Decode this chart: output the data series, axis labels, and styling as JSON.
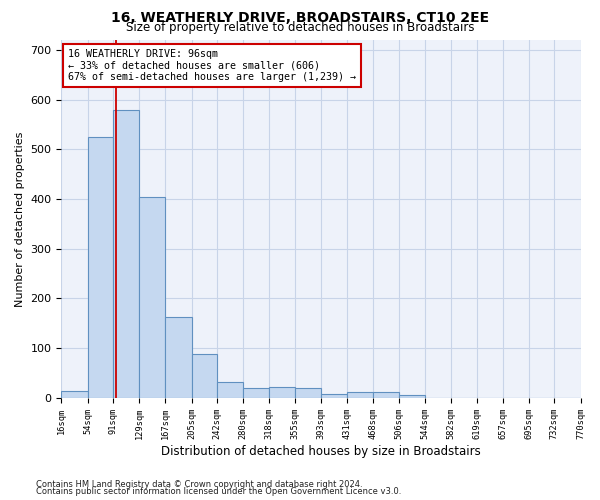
{
  "title1": "16, WEATHERLY DRIVE, BROADSTAIRS, CT10 2EE",
  "title2": "Size of property relative to detached houses in Broadstairs",
  "xlabel": "Distribution of detached houses by size in Broadstairs",
  "ylabel": "Number of detached properties",
  "bar_color": "#c5d8f0",
  "bar_edge_color": "#6090c0",
  "grid_color": "#c8d4e8",
  "bg_color": "#eef2fa",
  "annotation_text": "16 WEATHERLY DRIVE: 96sqm\n← 33% of detached houses are smaller (606)\n67% of semi-detached houses are larger (1,239) →",
  "redline_x": 96,
  "bin_edges": [
    16,
    54,
    91,
    129,
    167,
    205,
    242,
    280,
    318,
    355,
    393,
    431,
    468,
    506,
    544,
    582,
    619,
    657,
    695,
    732,
    770
  ],
  "bar_heights": [
    14,
    524,
    580,
    404,
    163,
    88,
    32,
    19,
    22,
    20,
    7,
    11,
    11,
    5,
    0,
    0,
    0,
    0,
    0,
    0
  ],
  "ylim": [
    0,
    720
  ],
  "yticks": [
    0,
    100,
    200,
    300,
    400,
    500,
    600,
    700
  ],
  "footnote1": "Contains HM Land Registry data © Crown copyright and database right 2024.",
  "footnote2": "Contains public sector information licensed under the Open Government Licence v3.0."
}
